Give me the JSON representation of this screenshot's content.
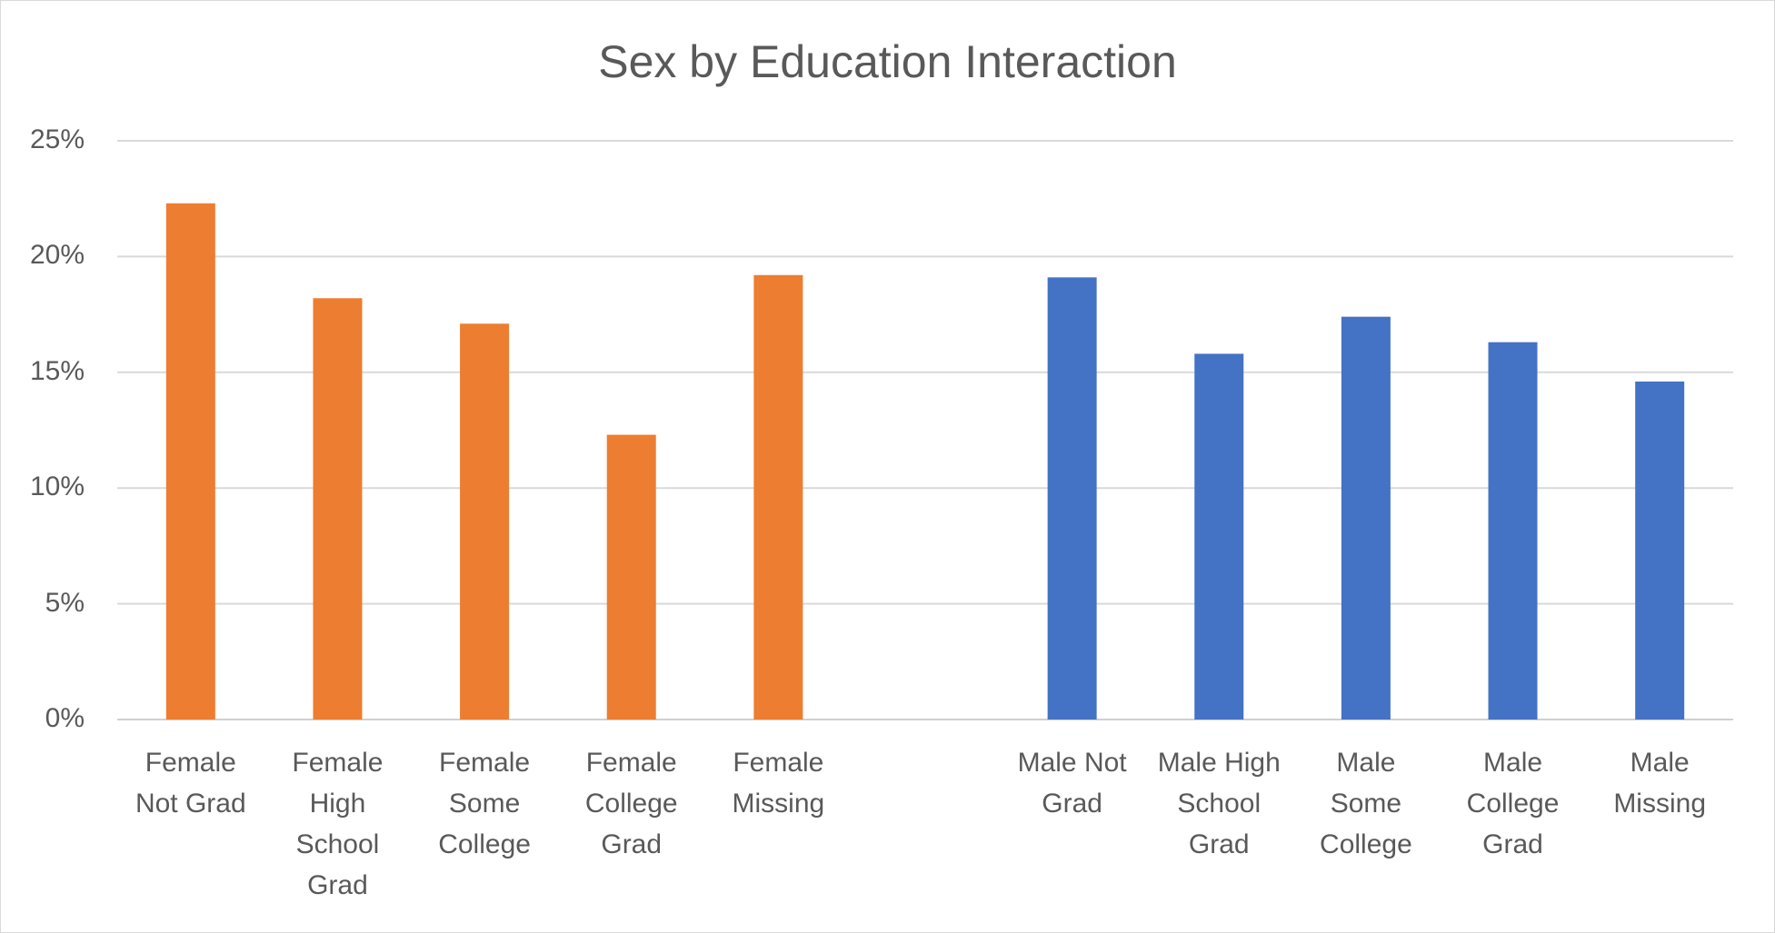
{
  "chart_data": {
    "type": "bar",
    "title": "Sex by Education Interaction",
    "xlabel": "",
    "ylabel": "",
    "ylim": [
      0,
      25
    ],
    "yticks": [
      "0%",
      "5%",
      "10%",
      "15%",
      "20%",
      "25%"
    ],
    "grid": true,
    "legend": "none",
    "categories": [
      "Female Not Grad",
      "Female High School Grad",
      "Female Some College",
      "Female College Grad",
      "Female Missing",
      "",
      "Male Not Grad",
      "Male High School Grad",
      "Male Some College",
      "Male College Grad",
      "Male Missing"
    ],
    "values": [
      22.3,
      18.2,
      17.1,
      12.3,
      19.2,
      null,
      19.1,
      15.8,
      17.4,
      16.3,
      14.6
    ],
    "colors": [
      "#ED7D31",
      "#ED7D31",
      "#ED7D31",
      "#ED7D31",
      "#ED7D31",
      null,
      "#4472C4",
      "#4472C4",
      "#4472C4",
      "#4472C4",
      "#4472C4"
    ]
  }
}
